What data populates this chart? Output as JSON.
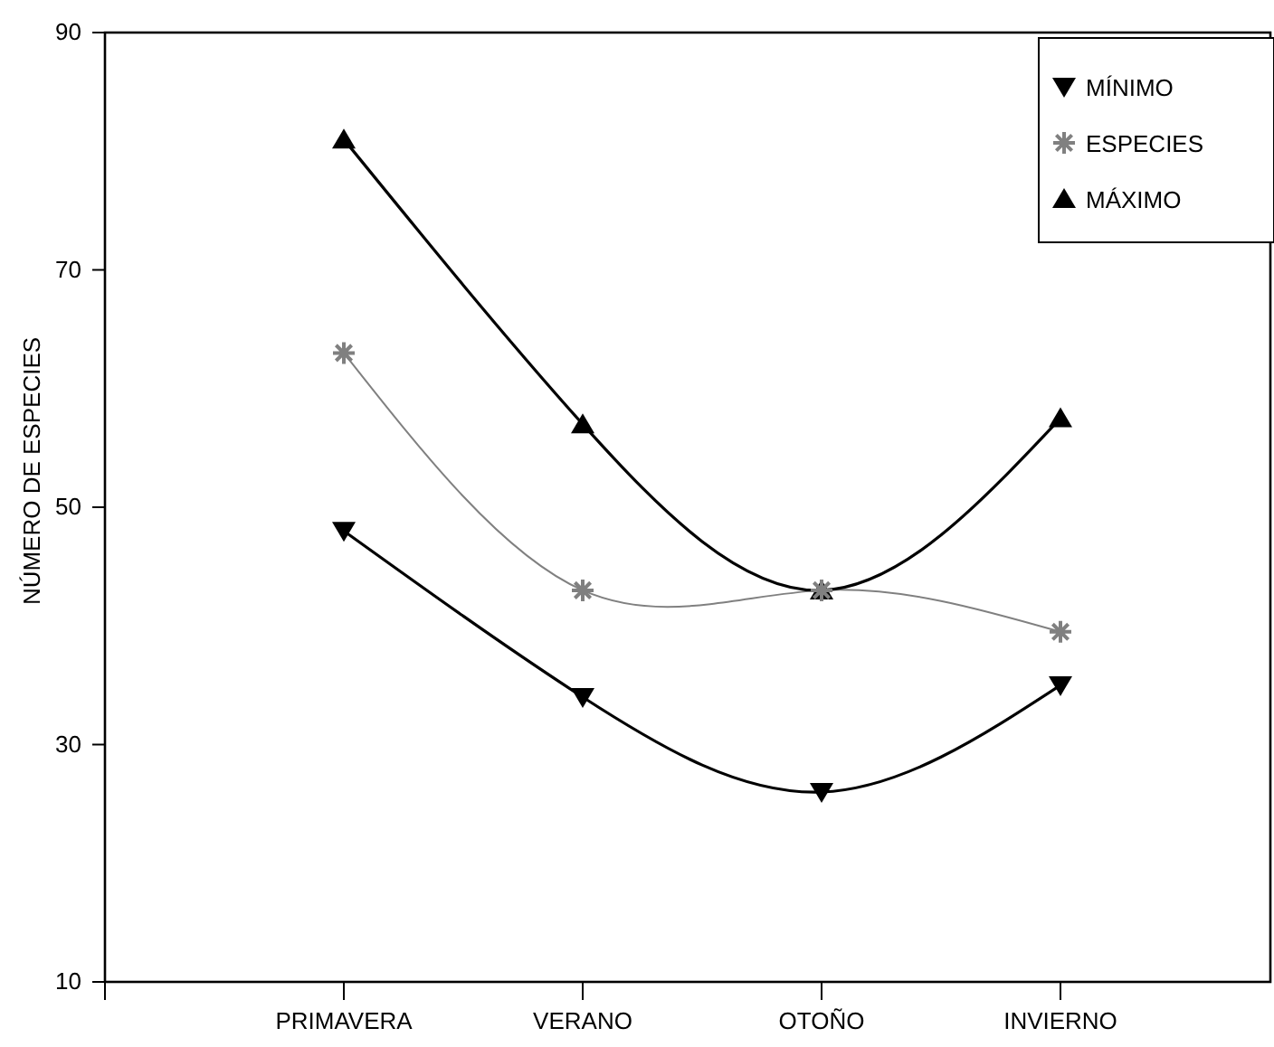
{
  "chart_data": {
    "type": "line",
    "ylabel": "NÚMERO DE ESPECIES",
    "categories": [
      "PRIMAVERA",
      "VERANO",
      "OTOÑO",
      "INVIERNO"
    ],
    "ylim": [
      10,
      90
    ],
    "yticks": [
      10,
      30,
      50,
      70,
      90
    ],
    "grid": false,
    "legend": "top right",
    "series": [
      {
        "name": "MÍNIMO",
        "color": "#000000",
        "marker": "triangle-down",
        "values": [
          48,
          34,
          26,
          35
        ]
      },
      {
        "name": "ESPECIES",
        "color": "#808080",
        "marker": "cross",
        "values": [
          63,
          43,
          43,
          39.5
        ]
      },
      {
        "name": "MÁXIMO",
        "color": "#000000",
        "marker": "triangle",
        "values": [
          81,
          57,
          43,
          57.5
        ]
      }
    ]
  }
}
